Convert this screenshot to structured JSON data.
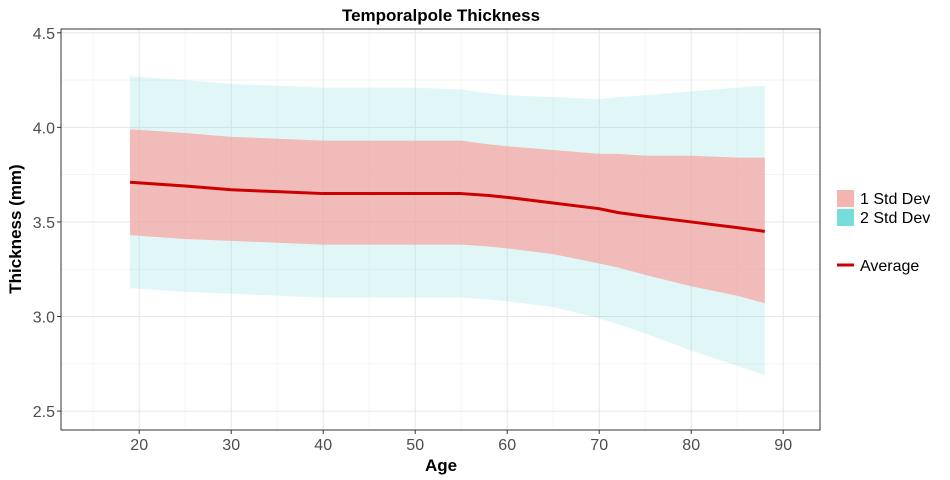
{
  "chart_data": {
    "type": "area",
    "title": "Temporalpole Thickness",
    "xlabel": "Age",
    "ylabel": "Thickness (mm)",
    "xlim": [
      11.5,
      94
    ],
    "ylim": [
      2.4,
      4.52
    ],
    "x_ticks": [
      20,
      30,
      40,
      50,
      60,
      70,
      80,
      90
    ],
    "y_ticks": [
      2.5,
      3.0,
      3.5,
      4.0,
      4.5
    ],
    "y_tick_labels": [
      "2.5",
      "3.0",
      "3.5",
      "4.0",
      "4.5"
    ],
    "grid": true,
    "legend_position": "right",
    "x": [
      19,
      25,
      30,
      35,
      40,
      45,
      50,
      55,
      58,
      60,
      65,
      70,
      72,
      75,
      80,
      85,
      88
    ],
    "series": [
      {
        "name": "Average",
        "kind": "line",
        "color": "#cc0000",
        "values": [
          3.71,
          3.69,
          3.67,
          3.66,
          3.65,
          3.65,
          3.65,
          3.65,
          3.64,
          3.63,
          3.6,
          3.57,
          3.55,
          3.53,
          3.5,
          3.47,
          3.45
        ]
      },
      {
        "name": "1 Std Dev",
        "kind": "band",
        "color": "#f4a7a3",
        "lower": [
          3.43,
          3.41,
          3.4,
          3.39,
          3.38,
          3.38,
          3.38,
          3.38,
          3.37,
          3.36,
          3.33,
          3.28,
          3.26,
          3.22,
          3.16,
          3.11,
          3.07
        ],
        "upper": [
          3.99,
          3.97,
          3.95,
          3.94,
          3.93,
          3.93,
          3.93,
          3.93,
          3.91,
          3.9,
          3.88,
          3.86,
          3.86,
          3.85,
          3.85,
          3.84,
          3.84
        ]
      },
      {
        "name": "2 Std Dev",
        "kind": "band",
        "color": "#76dcdc",
        "lower": [
          3.15,
          3.13,
          3.12,
          3.11,
          3.1,
          3.1,
          3.1,
          3.1,
          3.09,
          3.08,
          3.05,
          2.99,
          2.96,
          2.91,
          2.82,
          2.74,
          2.69
        ],
        "upper": [
          4.27,
          4.25,
          4.23,
          4.22,
          4.21,
          4.21,
          4.21,
          4.2,
          4.18,
          4.17,
          4.16,
          4.15,
          4.16,
          4.17,
          4.19,
          4.21,
          4.22
        ]
      }
    ],
    "legend": [
      {
        "label": "1 Std Dev",
        "swatch": "band",
        "color": "#f4b5b0"
      },
      {
        "label": "2 Std Dev",
        "swatch": "band",
        "color": "#76dcdc"
      },
      {
        "label": "Average",
        "swatch": "line",
        "color": "#cc0000"
      }
    ]
  }
}
